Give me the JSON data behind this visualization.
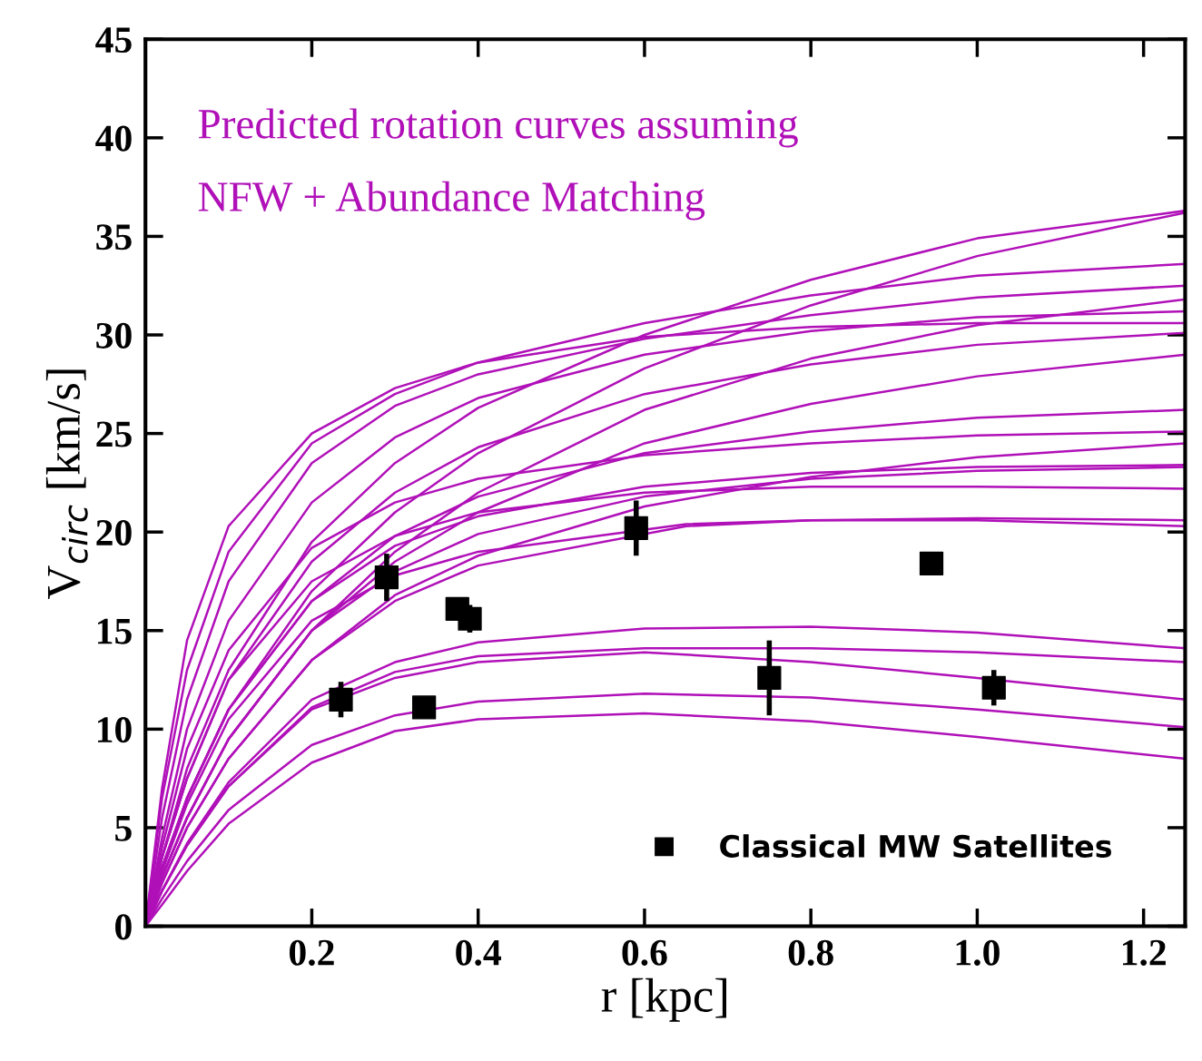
{
  "chart_data": {
    "type": "line",
    "xlabel": "r [kpc]",
    "ylabel": "V$_{circ}$ [km/s]",
    "annotations": [
      "Predicted rotation curves assuming",
      "NFW + Abundance Matching"
    ],
    "xlim": [
      0,
      1.25
    ],
    "ylim": [
      0,
      45
    ],
    "xticks": [
      {
        "value": 0.2,
        "label": "0.2"
      },
      {
        "value": 0.4,
        "label": "0.4"
      },
      {
        "value": 0.6,
        "label": "0.6"
      },
      {
        "value": 0.8,
        "label": "0.8"
      },
      {
        "value": 1.0,
        "label": "1.0"
      },
      {
        "value": 1.2,
        "label": "1.2"
      }
    ],
    "yticks": [
      0,
      5,
      10,
      15,
      20,
      25,
      30,
      35,
      40,
      45
    ],
    "grid": false,
    "legend": "bottom",
    "marker": "none",
    "line_style": "solid",
    "series": [
      {
        "color": "#b010b8",
        "x": [
          0,
          0.02,
          0.05,
          0.1,
          0.2,
          0.3,
          0.4,
          0.6,
          0.8,
          1.0,
          1.25
        ],
        "values": [
          0,
          3.5,
          8,
          13,
          19.5,
          23.5,
          26.3,
          30,
          32.8,
          34.9,
          36.3
        ]
      },
      {
        "color": "#b010b8",
        "x": [
          0,
          0.02,
          0.05,
          0.1,
          0.2,
          0.3,
          0.4,
          0.6,
          0.8,
          1.0,
          1.25
        ],
        "values": [
          0,
          2.8,
          6.5,
          11,
          17,
          21,
          24,
          28.3,
          31.5,
          34,
          36.2
        ]
      },
      {
        "color": "#b010b8",
        "x": [
          0,
          0.02,
          0.05,
          0.1,
          0.2,
          0.3,
          0.4,
          0.6,
          0.8,
          1.0,
          1.25
        ],
        "values": [
          0,
          6.5,
          13,
          19,
          24.5,
          27,
          28.6,
          30.6,
          32,
          33,
          33.6
        ]
      },
      {
        "color": "#b010b8",
        "x": [
          0,
          0.02,
          0.05,
          0.1,
          0.2,
          0.3,
          0.4,
          0.6,
          0.8,
          1.0,
          1.25
        ],
        "values": [
          0,
          5.5,
          11.5,
          17.5,
          23.5,
          26.4,
          28,
          29.8,
          31,
          31.9,
          32.5
        ]
      },
      {
        "color": "#b010b8",
        "x": [
          0,
          0.02,
          0.05,
          0.1,
          0.2,
          0.3,
          0.4,
          0.6,
          0.8,
          1.0,
          1.25
        ],
        "values": [
          0,
          2.5,
          5.5,
          9.5,
          15,
          19,
          22,
          26.2,
          28.8,
          30.5,
          31.8
        ]
      },
      {
        "color": "#b010b8",
        "x": [
          0,
          0.02,
          0.05,
          0.1,
          0.2,
          0.3,
          0.4,
          0.6,
          0.8,
          1.0,
          1.25
        ],
        "values": [
          0,
          4.5,
          10,
          15.5,
          21.5,
          24.8,
          26.8,
          29,
          30.2,
          30.9,
          31.2
        ]
      },
      {
        "color": "#b010b8",
        "x": [
          0,
          0.02,
          0.05,
          0.1,
          0.2,
          0.3,
          0.4,
          0.6,
          0.8,
          1.0,
          1.25
        ],
        "values": [
          0,
          7,
          14.5,
          20.3,
          25,
          27.3,
          28.6,
          29.9,
          30.4,
          30.6,
          30.6
        ]
      },
      {
        "color": "#b010b8",
        "x": [
          0,
          0.02,
          0.05,
          0.1,
          0.2,
          0.3,
          0.4,
          0.6,
          0.8,
          1.0,
          1.25
        ],
        "values": [
          0,
          3.5,
          7.5,
          12.5,
          18.5,
          22,
          24.3,
          27,
          28.5,
          29.5,
          30.1
        ]
      },
      {
        "color": "#b010b8",
        "x": [
          0,
          0.02,
          0.05,
          0.1,
          0.2,
          0.3,
          0.4,
          0.6,
          0.8,
          1.0,
          1.25
        ],
        "values": [
          0,
          2.5,
          5.5,
          9.5,
          15,
          18.5,
          21,
          24.5,
          26.5,
          27.9,
          29
        ]
      },
      {
        "color": "#b010b8",
        "x": [
          0,
          0.02,
          0.05,
          0.1,
          0.2,
          0.3,
          0.4,
          0.6,
          0.8,
          1.0,
          1.25
        ],
        "values": [
          0,
          3,
          6.5,
          11,
          16.5,
          19.8,
          21.8,
          24,
          25.1,
          25.8,
          26.2
        ]
      },
      {
        "color": "#b010b8",
        "x": [
          0,
          0.02,
          0.05,
          0.1,
          0.2,
          0.3,
          0.4,
          0.6,
          0.8,
          1.0,
          1.25
        ],
        "values": [
          0,
          4,
          9,
          14,
          19.2,
          21.5,
          22.7,
          23.9,
          24.5,
          24.9,
          25.1
        ]
      },
      {
        "color": "#b010b8",
        "x": [
          0,
          0.02,
          0.05,
          0.1,
          0.2,
          0.3,
          0.4,
          0.6,
          0.8,
          1.0,
          1.25
        ],
        "values": [
          0,
          2.2,
          5,
          8.5,
          13.5,
          16.8,
          18.8,
          21.3,
          22.8,
          23.8,
          24.5
        ]
      },
      {
        "color": "#b010b8",
        "x": [
          0,
          0.02,
          0.05,
          0.1,
          0.2,
          0.3,
          0.4,
          0.6,
          0.8,
          1.0,
          1.25
        ],
        "values": [
          0,
          3,
          6.5,
          11,
          16.5,
          19.3,
          20.8,
          22.3,
          23,
          23.3,
          23.4
        ]
      },
      {
        "color": "#b010b8",
        "x": [
          0,
          0.02,
          0.05,
          0.1,
          0.2,
          0.3,
          0.4,
          0.6,
          0.8,
          1.0,
          1.25
        ],
        "values": [
          0,
          2.5,
          5.5,
          9.5,
          15,
          18,
          19.9,
          21.8,
          22.7,
          23.1,
          23.3
        ]
      },
      {
        "color": "#b010b8",
        "x": [
          0,
          0.02,
          0.05,
          0.1,
          0.2,
          0.3,
          0.4,
          0.6,
          0.8,
          1.0,
          1.25
        ],
        "values": [
          0,
          3.5,
          7.5,
          12.5,
          17.5,
          19.8,
          21,
          22,
          22.3,
          22.3,
          22.2
        ]
      },
      {
        "color": "#b010b8",
        "x": [
          0,
          0.02,
          0.05,
          0.1,
          0.2,
          0.3,
          0.4,
          0.65,
          0.8,
          1.0,
          1.25
        ],
        "values": [
          0,
          2.2,
          5,
          8.5,
          13.5,
          16.5,
          18.3,
          20.3,
          20.6,
          20.7,
          20.6
        ]
      },
      {
        "color": "#b010b8",
        "x": [
          0,
          0.02,
          0.05,
          0.1,
          0.2,
          0.3,
          0.4,
          0.65,
          0.8,
          1.0,
          1.25
        ],
        "values": [
          0,
          2.8,
          6.2,
          10.5,
          15.5,
          17.8,
          19,
          20.4,
          20.6,
          20.6,
          20.3
        ]
      },
      {
        "color": "#b010b8",
        "x": [
          0,
          0.02,
          0.05,
          0.1,
          0.2,
          0.3,
          0.4,
          0.6,
          0.8,
          1.0,
          1.25
        ],
        "values": [
          0,
          1.8,
          4.2,
          7.3,
          11.5,
          13.4,
          14.4,
          15.1,
          15.2,
          14.9,
          14.1
        ]
      },
      {
        "color": "#b010b8",
        "x": [
          0,
          0.02,
          0.05,
          0.1,
          0.2,
          0.3,
          0.4,
          0.6,
          0.8,
          1.0,
          1.25
        ],
        "values": [
          0,
          1.8,
          4.1,
          7.1,
          11.1,
          12.9,
          13.7,
          14.1,
          14.1,
          13.9,
          13.4
        ]
      },
      {
        "color": "#b010b8",
        "x": [
          0,
          0.02,
          0.05,
          0.1,
          0.2,
          0.3,
          0.4,
          0.6,
          0.8,
          1.0,
          1.25
        ],
        "values": [
          0,
          1.8,
          4.1,
          7.1,
          11,
          12.6,
          13.4,
          13.9,
          13.4,
          12.6,
          11.5
        ]
      },
      {
        "color": "#b010b8",
        "x": [
          0,
          0.02,
          0.05,
          0.1,
          0.2,
          0.3,
          0.4,
          0.6,
          0.8,
          1.0,
          1.25
        ],
        "values": [
          0,
          1.4,
          3.3,
          5.9,
          9.2,
          10.7,
          11.4,
          11.8,
          11.6,
          11,
          10.1
        ]
      },
      {
        "color": "#b010b8",
        "x": [
          0,
          0.02,
          0.05,
          0.1,
          0.2,
          0.3,
          0.4,
          0.6,
          0.8,
          1.0,
          1.25
        ],
        "values": [
          0,
          1.1,
          2.8,
          5.2,
          8.3,
          9.9,
          10.5,
          10.8,
          10.4,
          9.6,
          8.5
        ]
      },
      {
        "type": "scatter",
        "name": "Classical MW Satellites",
        "color": "#000000",
        "marker": "square",
        "x": [
          0.235,
          0.29,
          0.335,
          0.375,
          0.39,
          0.59,
          0.75,
          0.945,
          1.02
        ],
        "values": [
          11.5,
          17.7,
          11.1,
          16.1,
          15.6,
          20.2,
          12.6,
          18.4,
          12.1
        ],
        "errors": [
          0.9,
          1.2,
          null,
          null,
          0.7,
          1.4,
          1.9,
          null,
          0.9
        ]
      }
    ]
  }
}
